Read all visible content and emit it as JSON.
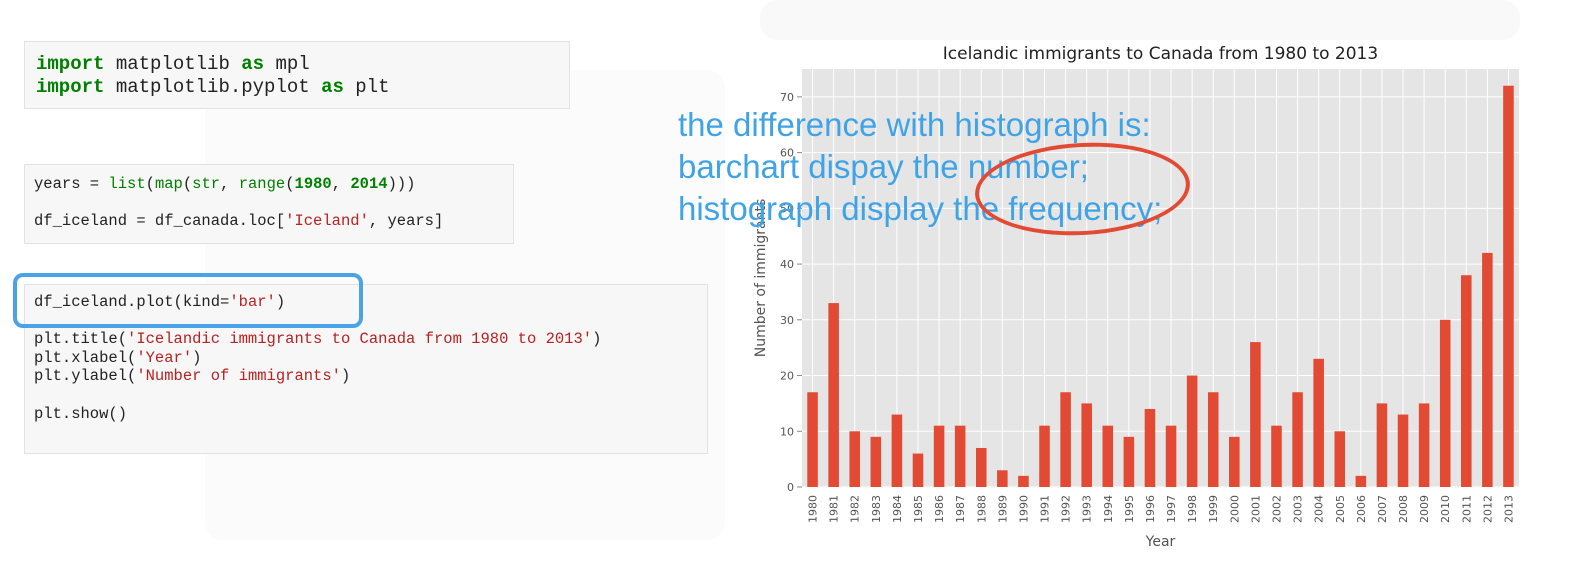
{
  "code_cells": [
    {
      "lines": [
        [
          {
            "t": "import",
            "c": "kw"
          },
          {
            "t": " matplotlib "
          },
          {
            "t": "as",
            "c": "kw"
          },
          {
            "t": " mpl"
          }
        ],
        [
          {
            "t": "import",
            "c": "kw"
          },
          {
            "t": " matplotlib.pyplot "
          },
          {
            "t": "as",
            "c": "kw"
          },
          {
            "t": " plt"
          }
        ]
      ]
    },
    {
      "lines": [
        [
          {
            "t": "years = "
          },
          {
            "t": "list",
            "c": "bi"
          },
          {
            "t": "("
          },
          {
            "t": "map",
            "c": "bi"
          },
          {
            "t": "("
          },
          {
            "t": "str",
            "c": "bi"
          },
          {
            "t": ", "
          },
          {
            "t": "range",
            "c": "bi"
          },
          {
            "t": "("
          },
          {
            "t": "1980",
            "c": "num"
          },
          {
            "t": ", "
          },
          {
            "t": "2014",
            "c": "num"
          },
          {
            "t": ")))"
          }
        ],
        [],
        [
          {
            "t": "df_iceland = df_canada.loc["
          },
          {
            "t": "'Iceland'",
            "c": "str"
          },
          {
            "t": ", years]"
          }
        ]
      ]
    },
    {
      "lines": [
        [
          {
            "t": "df_iceland.plot(kind="
          },
          {
            "t": "'bar'",
            "c": "str"
          },
          {
            "t": ")"
          }
        ],
        [],
        [
          {
            "t": "plt.title("
          },
          {
            "t": "'Icelandic immigrants to Canada from 1980 to 2013'",
            "c": "str"
          },
          {
            "t": ")"
          }
        ],
        [
          {
            "t": "plt.xlabel("
          },
          {
            "t": "'Year'",
            "c": "str"
          },
          {
            "t": ")"
          }
        ],
        [
          {
            "t": "plt.ylabel("
          },
          {
            "t": "'Number of immigrants'",
            "c": "str"
          },
          {
            "t": ")"
          }
        ],
        [],
        [
          {
            "t": "plt.show()"
          }
        ]
      ]
    }
  ],
  "annotation": {
    "lines": [
      "the difference with histograph is:",
      "barchart dispay the number;",
      "histograph display the frequency;"
    ],
    "color": "#3fa3e6"
  },
  "colors": {
    "bar": "#e24a33",
    "plot_bg": "#e5e5e5",
    "highlight_box": "#4aa3e8",
    "ellipse": "#e24a33"
  },
  "chart_data": {
    "type": "bar",
    "title": "Icelandic immigrants to Canada from 1980 to 2013",
    "xlabel": "Year",
    "ylabel": "Number of immigrants",
    "categories": [
      "1980",
      "1981",
      "1982",
      "1983",
      "1984",
      "1985",
      "1986",
      "1987",
      "1988",
      "1989",
      "1990",
      "1991",
      "1992",
      "1993",
      "1994",
      "1995",
      "1996",
      "1997",
      "1998",
      "1999",
      "2000",
      "2001",
      "2002",
      "2003",
      "2004",
      "2005",
      "2006",
      "2007",
      "2008",
      "2009",
      "2010",
      "2011",
      "2012",
      "2013"
    ],
    "values": [
      17,
      33,
      10,
      9,
      13,
      6,
      11,
      11,
      7,
      3,
      2,
      11,
      17,
      15,
      11,
      9,
      14,
      11,
      20,
      17,
      9,
      26,
      11,
      17,
      23,
      10,
      2,
      15,
      13,
      15,
      30,
      38,
      42,
      72
    ],
    "yticks": [
      0,
      10,
      20,
      30,
      40,
      50,
      60,
      70
    ],
    "ylim": [
      0,
      75
    ],
    "grid": true
  }
}
